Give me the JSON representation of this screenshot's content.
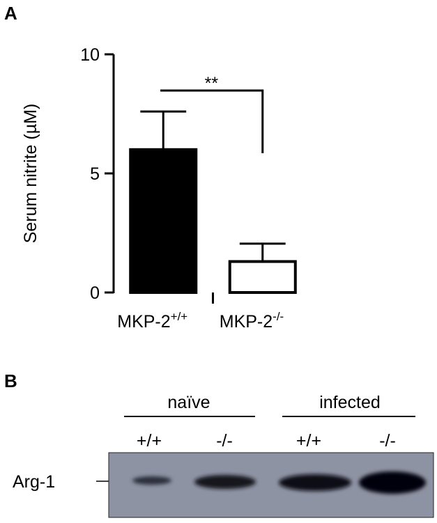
{
  "panels": [
    "A",
    "B"
  ],
  "chart_data": {
    "type": "bar",
    "ylabel": "Serum nitrite (µM)",
    "categories": [
      "MKP-2",
      "MKP-2"
    ],
    "genotypes": [
      "+/+",
      "-/-"
    ],
    "values": [
      6.0,
      1.3
    ],
    "errors": [
      1.6,
      0.75
    ],
    "colors": [
      "#000000",
      "#ffffff"
    ],
    "ylim": [
      0,
      10
    ],
    "yticks": [
      0,
      5,
      10
    ],
    "significance": "**"
  },
  "blot": {
    "groups": [
      "naïve",
      "infected"
    ],
    "lanes": [
      "+/+",
      "-/-",
      "+/+",
      "-/-"
    ],
    "protein": "Arg-1"
  }
}
